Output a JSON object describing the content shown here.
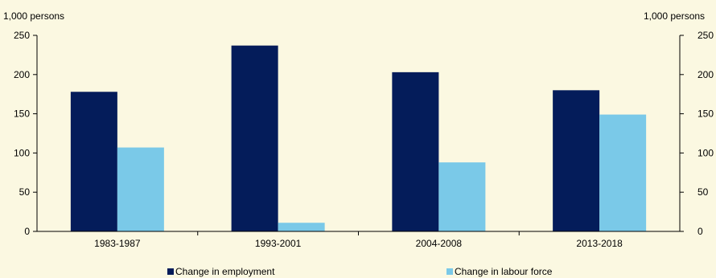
{
  "chart_data": {
    "type": "bar",
    "categories": [
      "1983-1987",
      "1993-2001",
      "2004-2008",
      "2013-2018"
    ],
    "series": [
      {
        "name": "Change in employment",
        "values": [
          178,
          237,
          203,
          180
        ],
        "color": "#041c5a"
      },
      {
        "name": "Change in labour force",
        "values": [
          107,
          11,
          88,
          149
        ],
        "color": "#7ac9e8"
      }
    ],
    "ylim": [
      0,
      250
    ],
    "yticks": [
      0,
      50,
      100,
      150,
      200,
      250
    ],
    "ytick_labels": [
      "0",
      "50",
      "100",
      "150",
      "200",
      "250"
    ],
    "left_unit": "1,000 persons",
    "right_unit": "1,000 persons",
    "grid": false,
    "legend_position": "bottom"
  },
  "colors": {
    "background": "#fbf8e1",
    "axis": "#000000"
  }
}
